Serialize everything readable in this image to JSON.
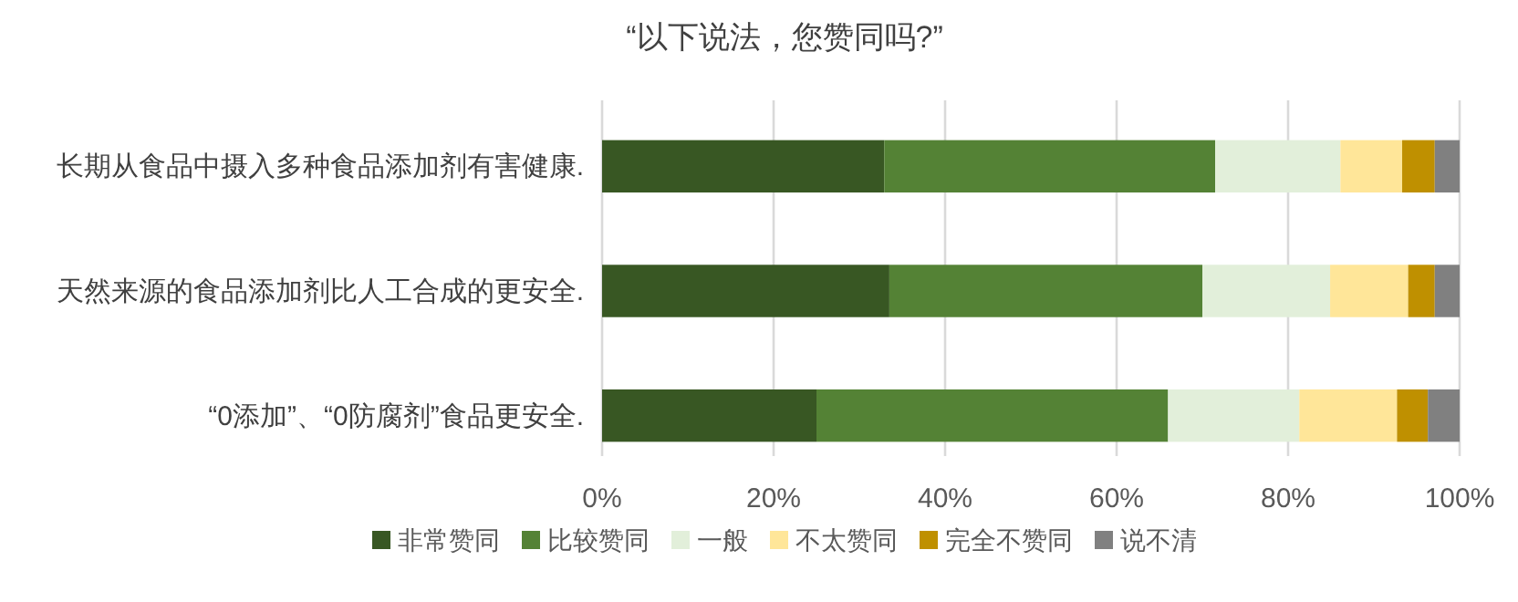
{
  "chart_data": {
    "type": "bar",
    "orientation": "horizontal",
    "stacked": true,
    "title": "“以下说法，您赞同吗?”",
    "categories": [
      "长期从食品中摄入多种食品添加剂有害健康.",
      "天然来源的食品添加剂比人工合成的更安全.",
      "“0添加”、“0防腐剂”食品更安全."
    ],
    "series": [
      {
        "name": "非常赞同",
        "color": "#385723",
        "values": [
          32.9,
          33.5,
          25.0
        ]
      },
      {
        "name": "比较赞同",
        "color": "#548235",
        "values": [
          38.6,
          36.5,
          41.0
        ]
      },
      {
        "name": "一般",
        "color": "#e2efda",
        "values": [
          14.6,
          14.9,
          15.3
        ]
      },
      {
        "name": "不太赞同",
        "color": "#ffe699",
        "values": [
          7.2,
          9.1,
          11.4
        ]
      },
      {
        "name": "完全不赞同",
        "color": "#bf9000",
        "values": [
          3.8,
          3.1,
          3.6
        ]
      },
      {
        "name": "说不清",
        "color": "#808080",
        "values": [
          2.9,
          2.9,
          3.7
        ]
      }
    ],
    "xlim": [
      0,
      100
    ],
    "xticks": [
      {
        "value": 0,
        "label": "0%"
      },
      {
        "value": 20,
        "label": "20%"
      },
      {
        "value": 40,
        "label": "40%"
      },
      {
        "value": 60,
        "label": "60%"
      },
      {
        "value": 80,
        "label": "80%"
      },
      {
        "value": 100,
        "label": "100%"
      }
    ],
    "grid": "x",
    "legend": "bottom"
  }
}
